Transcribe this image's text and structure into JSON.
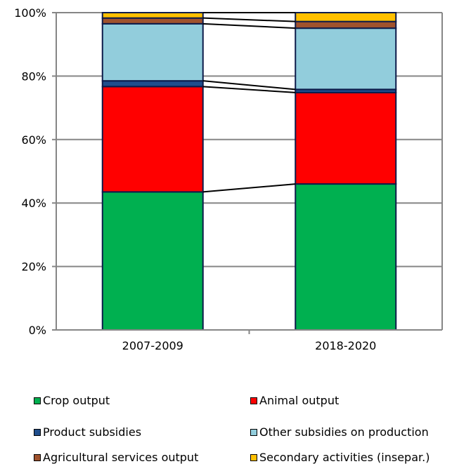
{
  "chart_data": {
    "type": "bar",
    "stacked": true,
    "categories": [
      "2007-2009",
      "2018-2020"
    ],
    "ylim": [
      0,
      100
    ],
    "yticks": [
      "0%",
      "20%",
      "40%",
      "60%",
      "80%",
      "100%"
    ],
    "grid": true,
    "legend_position": "bottom",
    "series": [
      {
        "name": "Crop output",
        "color": "#00b050",
        "values": [
          43.5,
          46.0
        ]
      },
      {
        "name": "Animal output",
        "color": "#ff0000",
        "values": [
          33.2,
          28.8
        ]
      },
      {
        "name": "Product subsidies",
        "color": "#1f4e8c",
        "values": [
          1.8,
          1.0
        ]
      },
      {
        "name": "Other subsidies on production",
        "color": "#92cddc",
        "values": [
          18.0,
          19.3
        ]
      },
      {
        "name": "Agricultural services output",
        "color": "#a0522d",
        "values": [
          1.8,
          2.1
        ]
      },
      {
        "name": "Secondary activities (insepar.)",
        "color": "#ffc000",
        "values": [
          1.7,
          2.8
        ]
      }
    ]
  }
}
